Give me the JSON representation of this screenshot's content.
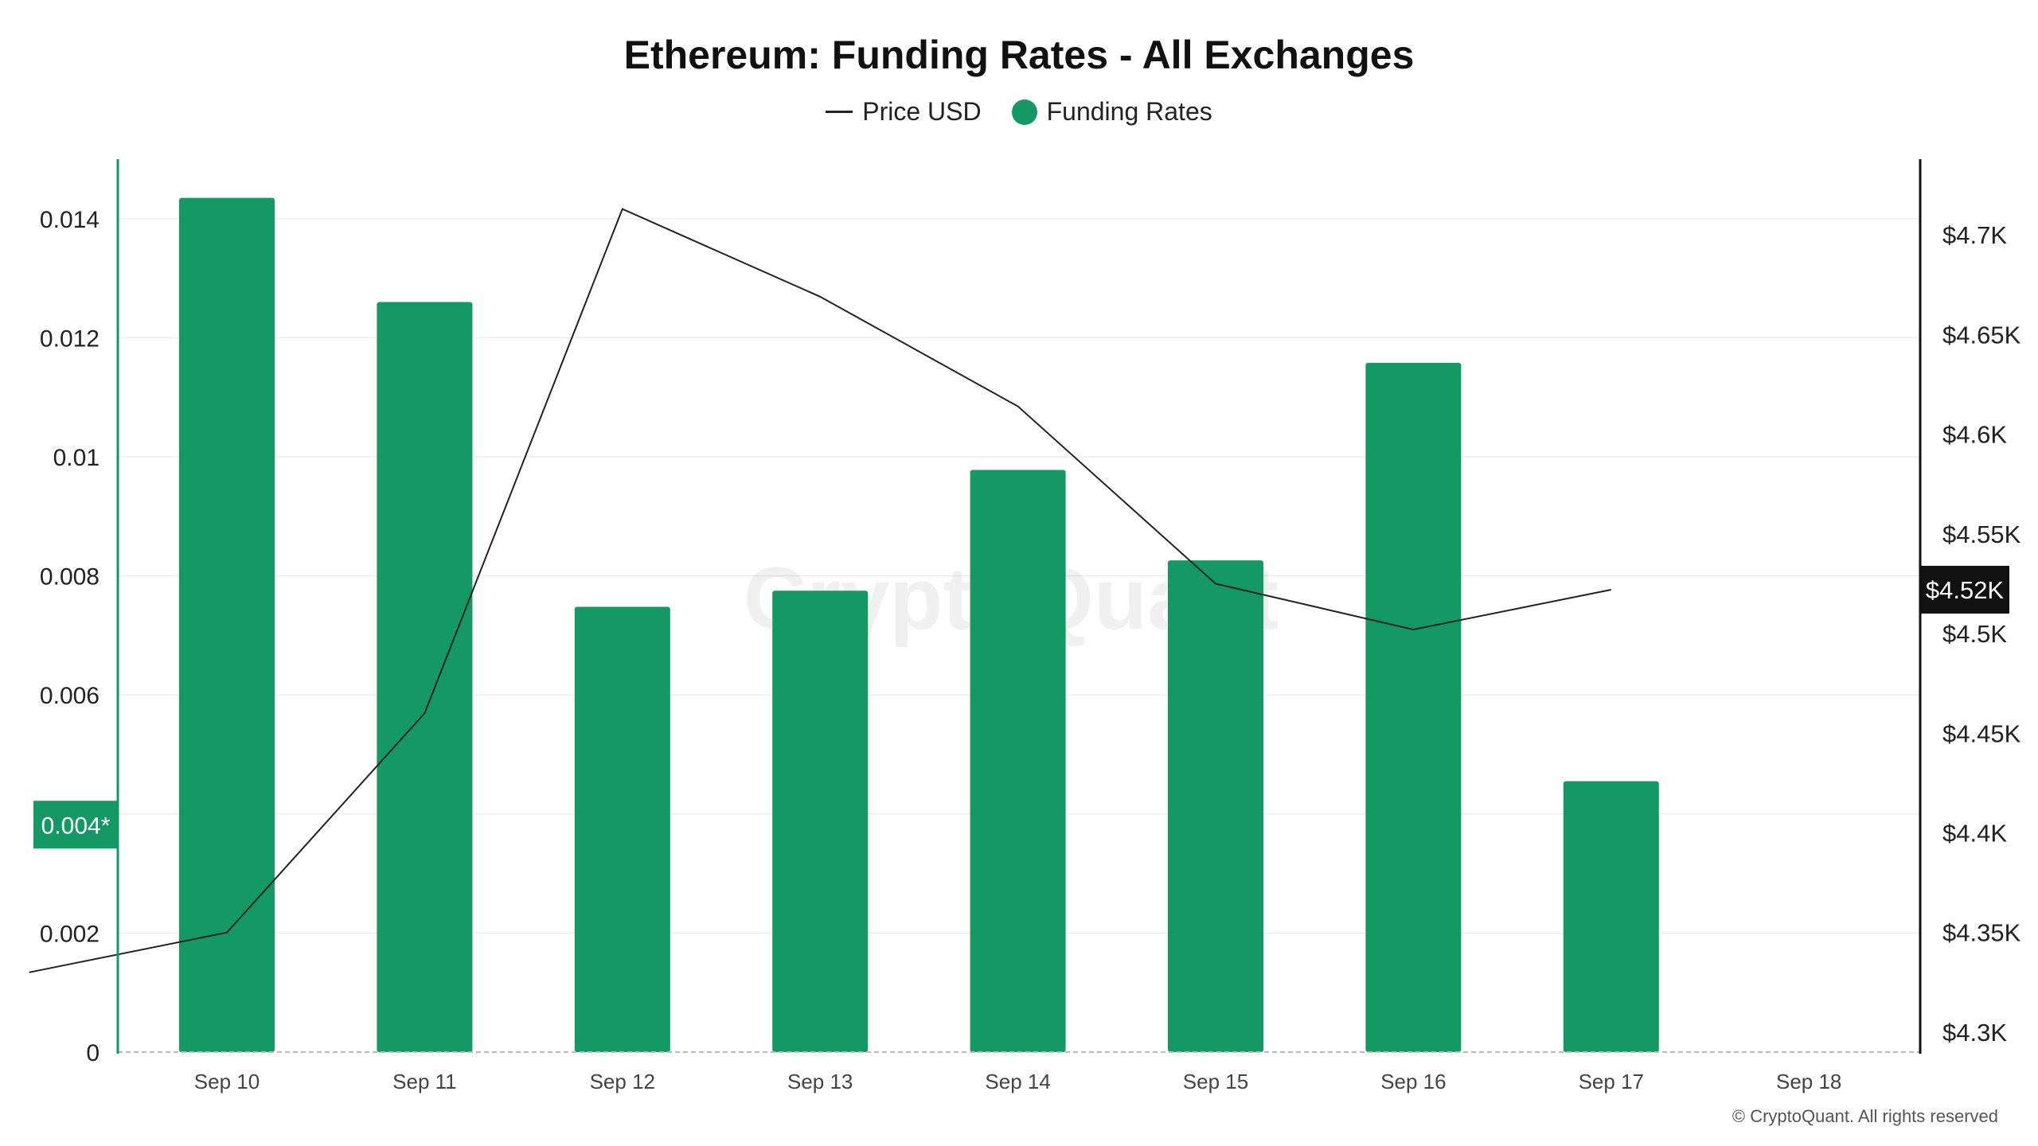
{
  "title": "Ethereum: Funding Rates - All Exchanges",
  "legend": {
    "price_label": "Price USD",
    "funding_label": "Funding Rates"
  },
  "watermark": "CryptoQuant",
  "copyright": "© CryptoQuant. All rights reserved",
  "colors": {
    "bar": "#159964",
    "line": "#222222",
    "left_axis": "#159964",
    "right_axis": "#111111",
    "marker_right_bg": "#111111"
  },
  "chart_data": {
    "type": "bar",
    "categories": [
      "Sep 10",
      "Sep 11",
      "Sep 12",
      "Sep 13",
      "Sep 14",
      "Sep 15",
      "Sep 16",
      "Sep 17",
      "Sep 18"
    ],
    "series": [
      {
        "name": "Funding Rates",
        "type": "bar",
        "axis": "left",
        "values": [
          0.01435,
          0.0126,
          0.00748,
          0.00775,
          0.00978,
          0.00826,
          0.01158,
          0.00455,
          null
        ]
      },
      {
        "name": "Price USD",
        "type": "line",
        "axis": "right",
        "x": [
          "Sep 9",
          "Sep 10",
          "Sep 11",
          "Sep 12",
          "Sep 13",
          "Sep 14",
          "Sep 15",
          "Sep 16",
          "Sep 17"
        ],
        "values": [
          4330,
          4350,
          4460,
          4713,
          4669,
          4614,
          4525,
          4502,
          4522
        ]
      }
    ],
    "y_left": {
      "ticks": [
        0,
        0.002,
        0.004,
        0.006,
        0.008,
        0.01,
        0.012,
        0.014
      ],
      "tick_labels": [
        "0",
        "0.002",
        "0.004",
        "0.006",
        "0.008",
        "0.01",
        "0.012",
        "0.014"
      ],
      "range": [
        0,
        0.015
      ],
      "marker_label": "0.004*",
      "marker_value": 0.00382
    },
    "y_right": {
      "ticks": [
        4300,
        4350,
        4400,
        4450,
        4500,
        4550,
        4600,
        4650,
        4700
      ],
      "tick_labels": [
        "$4.3K",
        "$4.35K",
        "$4.4K",
        "$4.45K",
        "$4.5K",
        "$4.55K",
        "$4.6K",
        "$4.65K",
        "$4.7K"
      ],
      "range": [
        4290,
        4738
      ],
      "marker_label": "$4.52K",
      "marker_value": 4522
    },
    "grid": true,
    "legend_position": "top-center"
  }
}
